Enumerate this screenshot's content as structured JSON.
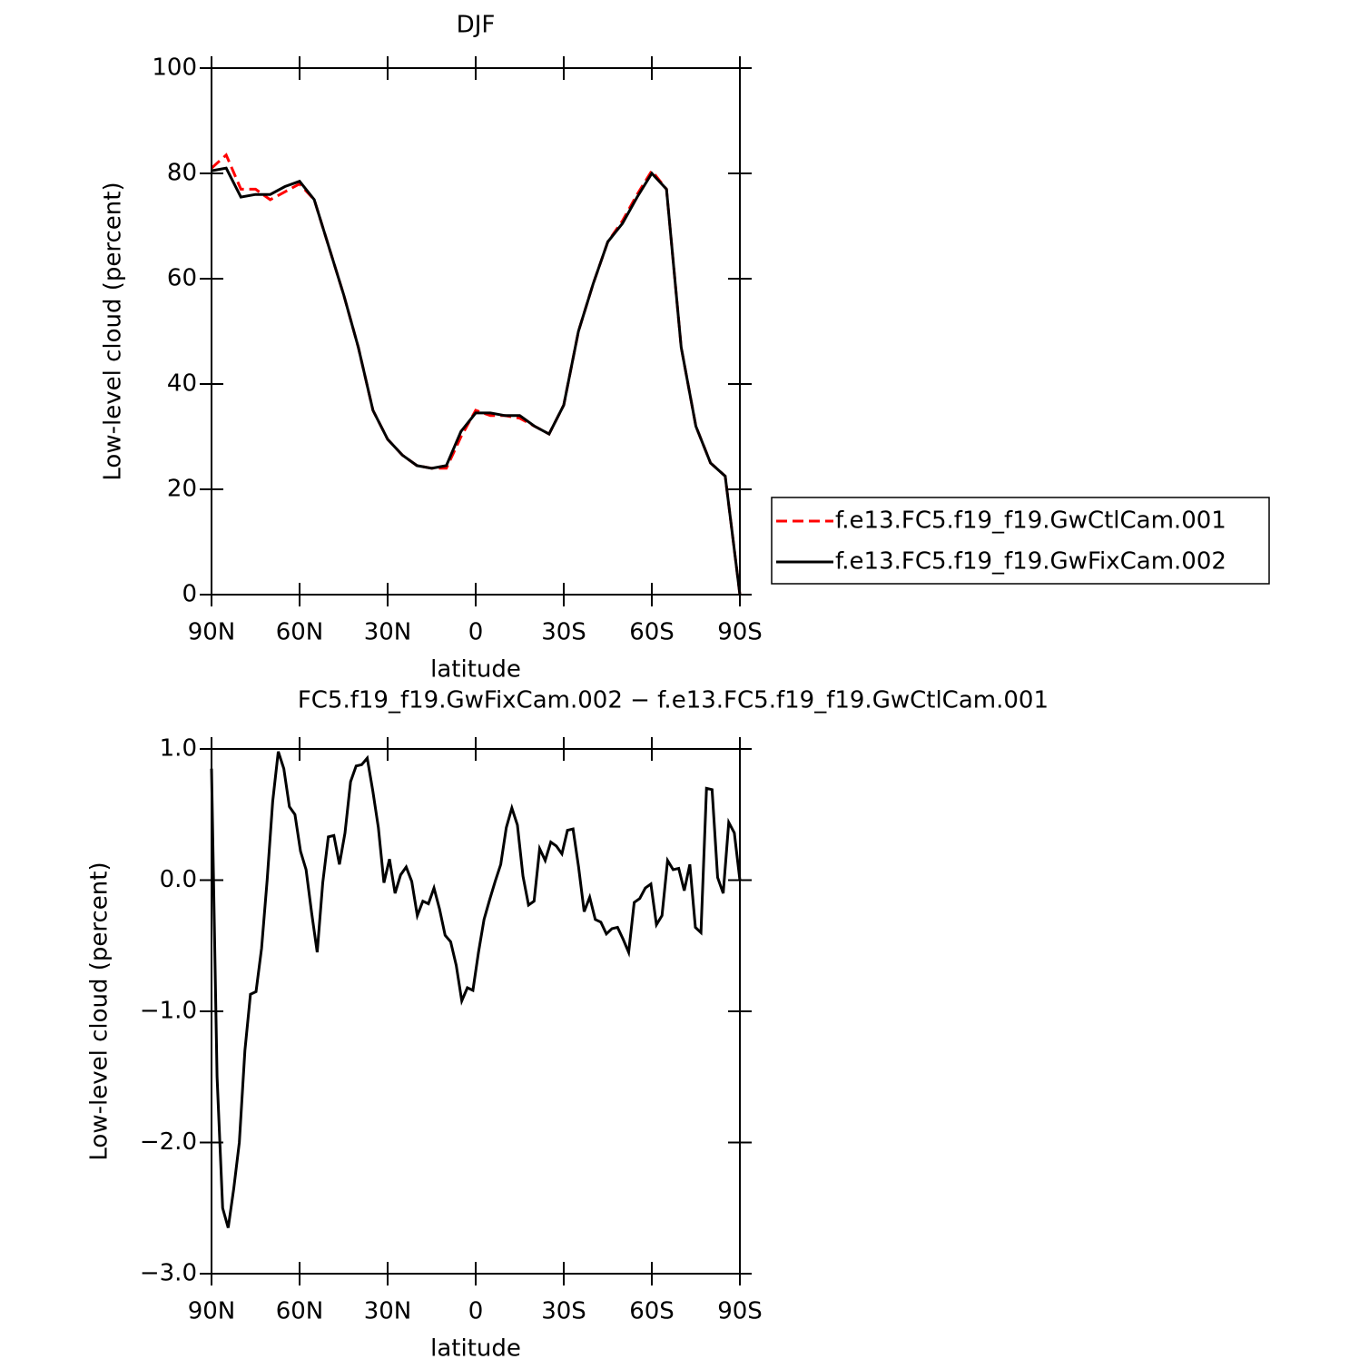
{
  "chart_data": [
    {
      "type": "line",
      "title": "DJF",
      "xlabel": "latitude",
      "ylabel": "Low-level cloud (percent)",
      "xlim": [
        90,
        -90
      ],
      "ylim": [
        0,
        100
      ],
      "xticks": [
        {
          "value": 90,
          "label": "90N"
        },
        {
          "value": 60,
          "label": "60N"
        },
        {
          "value": 30,
          "label": "30N"
        },
        0,
        {
          "value": -30,
          "label": "30S"
        },
        {
          "value": -60,
          "label": "60S"
        },
        {
          "value": -90,
          "label": "90S"
        }
      ],
      "yticks": [
        0,
        20,
        40,
        60,
        80,
        100
      ],
      "legend": "right",
      "x": [
        90,
        85,
        80,
        75,
        70,
        65,
        60,
        55,
        50,
        45,
        40,
        35,
        30,
        25,
        20,
        15,
        10,
        5,
        0,
        -5,
        -10,
        -15,
        -20,
        -25,
        -30,
        -35,
        -40,
        -45,
        -50,
        -55,
        -60,
        -65,
        -70,
        -75,
        -80,
        -85,
        -90
      ],
      "series": [
        {
          "name": "f.e13.FC5.f19_f19.GwCtlCam.001",
          "color": "#ff0000",
          "dash": true,
          "values": [
            81,
            83.5,
            77,
            77,
            75,
            76.5,
            78,
            75,
            66,
            57,
            47,
            35,
            29.5,
            26.5,
            24.5,
            24,
            24,
            30,
            35,
            34,
            34,
            33.5,
            32,
            30.5,
            36,
            50,
            59,
            67,
            71,
            76,
            80.5,
            77,
            47,
            32,
            25,
            22.5,
            0
          ]
        },
        {
          "name": "f.e13.FC5.f19_f19.GwFixCam.002",
          "color": "#000000",
          "dash": false,
          "values": [
            80.5,
            81,
            75.5,
            76,
            76,
            77.5,
            78.5,
            75,
            66,
            57,
            47,
            35,
            29.5,
            26.5,
            24.5,
            24,
            24.5,
            31,
            34.5,
            34.5,
            34,
            34,
            32,
            30.5,
            36,
            50,
            59,
            67,
            70.5,
            75.5,
            80,
            77,
            47,
            32,
            25,
            22.5,
            0
          ]
        }
      ]
    },
    {
      "type": "line",
      "title": "FC5.f19_f19.GwFixCam.002 − f.e13.FC5.f19_f19.GwCtlCam.001",
      "xlabel": "latitude",
      "ylabel": "Low-level cloud (percent)",
      "xlim": [
        90,
        -90
      ],
      "ylim": [
        -3,
        1
      ],
      "xticks": [
        {
          "value": 90,
          "label": "90N"
        },
        {
          "value": 60,
          "label": "60N"
        },
        {
          "value": 30,
          "label": "30N"
        },
        0,
        {
          "value": -30,
          "label": "30S"
        },
        {
          "value": -60,
          "label": "60S"
        },
        {
          "value": -90,
          "label": "90S"
        }
      ],
      "yticks": [
        {
          "value": -3,
          "label": "−3.0"
        },
        {
          "value": -2,
          "label": "−2.0"
        },
        {
          "value": -1,
          "label": "−1.0"
        },
        {
          "value": 0,
          "label": "0.0"
        },
        {
          "value": 1,
          "label": "1.0"
        }
      ],
      "color": "#000000",
      "x": [
        90,
        88.11,
        86.21,
        84.32,
        82.42,
        80.53,
        78.63,
        76.74,
        74.84,
        72.95,
        71.05,
        69.16,
        67.26,
        65.37,
        63.47,
        61.58,
        59.68,
        57.79,
        55.89,
        54.0,
        52.11,
        50.21,
        48.32,
        46.42,
        44.53,
        42.63,
        40.74,
        38.84,
        36.95,
        35.05,
        33.16,
        31.26,
        29.37,
        27.47,
        25.58,
        23.68,
        21.79,
        19.89,
        18.0,
        16.11,
        14.21,
        12.32,
        10.42,
        8.53,
        6.63,
        4.74,
        2.84,
        0.95,
        -0.95,
        -2.84,
        -4.74,
        -6.63,
        -8.53,
        -10.42,
        -12.32,
        -14.21,
        -16.11,
        -18.0,
        -19.89,
        -21.79,
        -23.68,
        -25.58,
        -27.47,
        -29.37,
        -31.26,
        -33.16,
        -35.05,
        -36.95,
        -38.84,
        -40.74,
        -42.63,
        -44.53,
        -46.42,
        -48.32,
        -50.21,
        -52.11,
        -54.0,
        -55.89,
        -57.79,
        -59.68,
        -61.58,
        -63.47,
        -65.37,
        -67.26,
        -69.16,
        -71.05,
        -72.95,
        -74.84,
        -76.74,
        -78.63,
        -80.53,
        -82.42,
        -84.32,
        -86.21,
        -88.11,
        -90
      ],
      "values": [
        0.85,
        -1.5,
        -2.5,
        -2.65,
        -2.35,
        -2.0,
        -1.3,
        -0.87,
        -0.85,
        -0.52,
        0.0,
        0.6,
        0.98,
        0.85,
        0.56,
        0.5,
        0.22,
        0.08,
        -0.25,
        -0.55,
        -0.02,
        0.33,
        0.34,
        0.12,
        0.36,
        0.75,
        0.87,
        0.88,
        0.93,
        0.68,
        0.4,
        -0.02,
        0.16,
        -0.1,
        0.04,
        0.1,
        -0.01,
        -0.27,
        -0.16,
        -0.18,
        -0.06,
        -0.22,
        -0.42,
        -0.47,
        -0.65,
        -0.92,
        -0.82,
        -0.84,
        -0.55,
        -0.3,
        -0.15,
        -0.01,
        0.12,
        0.4,
        0.55,
        0.42,
        0.03,
        -0.19,
        -0.16,
        0.24,
        0.15,
        0.29,
        0.26,
        0.2,
        0.38,
        0.39,
        0.1,
        -0.24,
        -0.13,
        -0.3,
        -0.32,
        -0.41,
        -0.37,
        -0.36,
        -0.45,
        -0.55,
        -0.17,
        -0.14,
        -0.06,
        -0.03,
        -0.34,
        -0.27,
        0.15,
        0.08,
        0.09,
        -0.08,
        0.12,
        -0.36,
        -0.4,
        0.7,
        0.69,
        0.02,
        -0.1,
        0.44,
        0.36,
        0.0
      ]
    }
  ]
}
